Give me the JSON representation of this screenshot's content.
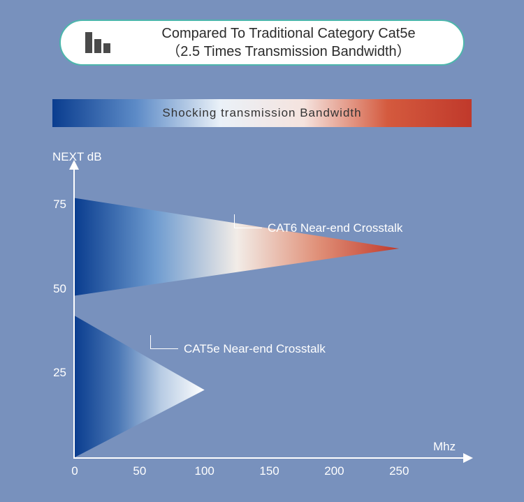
{
  "background_color": "#7891bd",
  "header": {
    "line1": "Compared To Traditional Category Cat5e",
    "line2": "（2.5 Times Transmission Bandwidth）",
    "pill_bg": "#ffffff",
    "pill_border": "#4db6ac",
    "title_fontsize": 20,
    "title_color": "#2b2b2b",
    "icon_bar_color": "#4a4a4a",
    "icon_bar_heights": [
      30,
      20,
      14
    ]
  },
  "gradient_bar": {
    "label": "Shocking transmission Bandwidth",
    "stops": [
      "#0a3d8f",
      "#5d8bc7",
      "#eaf1f8",
      "#f5e3de",
      "#d45a3e",
      "#c0392b"
    ]
  },
  "chart": {
    "type": "area-triangle",
    "y_axis": {
      "label": "NEXT dB",
      "ticks": [
        25,
        50,
        75
      ],
      "range": [
        0,
        85
      ]
    },
    "x_axis": {
      "label": "Mhz",
      "ticks": [
        0,
        50,
        100,
        150,
        200,
        250
      ],
      "range": [
        0,
        280
      ]
    },
    "axis_color": "#ffffff",
    "label_fontsize": 17,
    "series": [
      {
        "name": "CAT6 Near-end Crosstalk",
        "annotation_text": "CAT6 Near-end Crosstalk",
        "shape": "triangle",
        "apex": {
          "x": 250,
          "y": 62
        },
        "base_y_top": 77,
        "base_y_bottom": 48,
        "gradient_stops": [
          "#0a3d8f",
          "#6f9cd0",
          "#f2ece7",
          "#e09078",
          "#c0392b"
        ]
      },
      {
        "name": "CAT5e Near-end Crosstalk",
        "annotation_text": "CAT5e Near-end Crosstalk",
        "shape": "triangle",
        "apex": {
          "x": 100,
          "y": 20
        },
        "base_y_top": 42,
        "base_y_bottom": 0,
        "gradient_stops": [
          "#0a3d8f",
          "#4a77b5",
          "#b8cce4",
          "#ffffff"
        ]
      }
    ]
  }
}
